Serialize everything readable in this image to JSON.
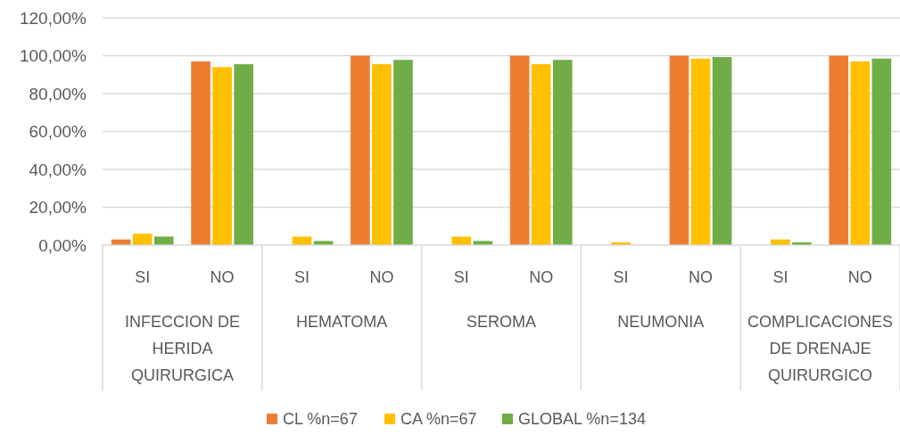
{
  "chart_data": {
    "type": "bar",
    "categories": [
      "SI",
      "NO",
      "SI",
      "NO",
      "SI",
      "NO",
      "SI",
      "NO",
      "SI",
      "NO"
    ],
    "annotations": [
      "INFECCION DE HERIDA QUIRURGICA",
      "HEMATOMA",
      "SEROMA",
      "NEUMONIA",
      "COMPLICACIONES DE DRENAJE QUIRURGICO"
    ],
    "series": [
      {
        "name": "CL %n=67",
        "color": "#ed7d31",
        "values": [
          3.0,
          97.0,
          0,
          100,
          0,
          100,
          0,
          100,
          0,
          100
        ]
      },
      {
        "name": "CA %n=67",
        "color": "#ffc000",
        "values": [
          6.0,
          94.0,
          4.5,
          95.5,
          4.5,
          95.5,
          1.5,
          98.5,
          3.0,
          97.0
        ]
      },
      {
        "name": "GLOBAL %n=134",
        "color": "#70ad47",
        "values": [
          4.5,
          95.5,
          2.2,
          97.8,
          2.2,
          97.8,
          null,
          99.3,
          1.5,
          98.5
        ]
      }
    ],
    "ylim": [
      0,
      120
    ],
    "yticks": [
      {
        "value": 0,
        "label": "0,00%"
      },
      {
        "value": 20,
        "label": "20,00%"
      },
      {
        "value": 40,
        "label": "40,00%"
      },
      {
        "value": 60,
        "label": "60,00%"
      },
      {
        "value": 80,
        "label": "80,00%"
      },
      {
        "value": 100,
        "label": "100,00%"
      },
      {
        "value": 120,
        "label": "120,00%"
      }
    ],
    "grid": true,
    "legend": "bottom"
  }
}
